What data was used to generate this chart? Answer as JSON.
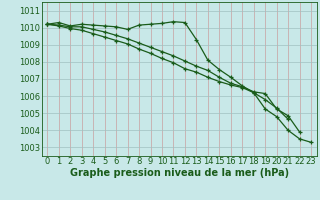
{
  "x": [
    0,
    1,
    2,
    3,
    4,
    5,
    6,
    7,
    8,
    9,
    10,
    11,
    12,
    13,
    14,
    15,
    16,
    17,
    18,
    19,
    20,
    21,
    22,
    23
  ],
  "line1": [
    1010.2,
    1010.3,
    1010.1,
    1010.2,
    1010.15,
    1010.1,
    1010.05,
    1009.9,
    1010.15,
    1010.2,
    1010.25,
    1010.35,
    1010.3,
    1009.3,
    1008.1,
    1007.55,
    1007.1,
    1006.6,
    1006.2,
    1005.25,
    1004.8,
    1004.0,
    1003.5,
    1003.3
  ],
  "line2": [
    1010.2,
    1010.15,
    1010.05,
    1010.05,
    1009.9,
    1009.75,
    1009.55,
    1009.35,
    1009.1,
    1008.85,
    1008.6,
    1008.35,
    1008.05,
    1007.75,
    1007.5,
    1007.1,
    1006.75,
    1006.55,
    1006.25,
    1006.15,
    1005.25,
    1004.85,
    1003.9,
    null
  ],
  "line3": [
    1010.2,
    1010.1,
    1009.95,
    1009.85,
    1009.65,
    1009.45,
    1009.25,
    1009.05,
    1008.75,
    1008.5,
    1008.2,
    1007.95,
    1007.6,
    1007.4,
    1007.1,
    1006.85,
    1006.65,
    1006.5,
    1006.2,
    1005.8,
    1005.3,
    1004.65,
    null,
    null
  ],
  "line_color": "#1a5c1a",
  "bg_color": "#c8e8e8",
  "grid_major_color": "#d0a0a0",
  "grid_minor_color": "#b8d8d8",
  "xlabel": "Graphe pression niveau de la mer (hPa)",
  "ylim": [
    1002.5,
    1011.5
  ],
  "yticks": [
    1003,
    1004,
    1005,
    1006,
    1007,
    1008,
    1009,
    1010,
    1011
  ],
  "xlim": [
    -0.5,
    23.5
  ],
  "xticks": [
    0,
    1,
    2,
    3,
    4,
    5,
    6,
    7,
    8,
    9,
    10,
    11,
    12,
    13,
    14,
    15,
    16,
    17,
    18,
    19,
    20,
    21,
    22,
    23
  ]
}
